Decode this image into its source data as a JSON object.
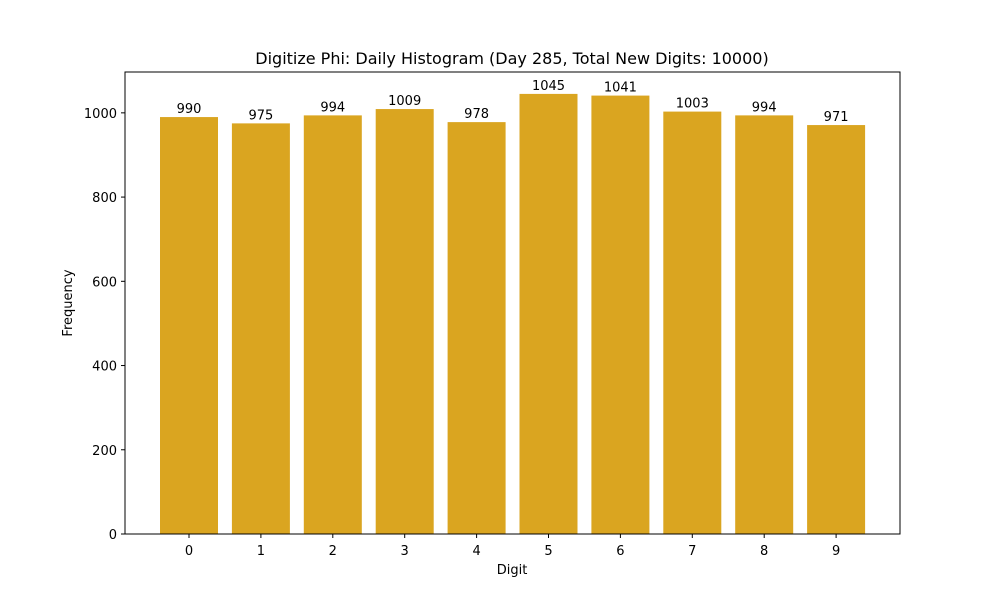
{
  "chart_data": {
    "type": "bar",
    "title": "Digitize Phi: Daily Histogram (Day 285, Total New Digits: 10000)",
    "xlabel": "Digit",
    "ylabel": "Frequency",
    "categories": [
      "0",
      "1",
      "2",
      "3",
      "4",
      "5",
      "6",
      "7",
      "8",
      "9"
    ],
    "values": [
      990,
      975,
      994,
      1009,
      978,
      1045,
      1041,
      1003,
      994,
      971
    ],
    "bar_labels": [
      "990",
      "975",
      "994",
      "1009",
      "978",
      "1045",
      "1041",
      "1003",
      "994",
      "971"
    ],
    "ylim": [
      0,
      1097
    ],
    "yticks": [
      0,
      200,
      400,
      600,
      800,
      1000
    ],
    "ytick_labels": [
      "0",
      "200",
      "400",
      "600",
      "800",
      "1000"
    ],
    "grid": false,
    "legend": null,
    "bar_color": "#DAA520"
  }
}
